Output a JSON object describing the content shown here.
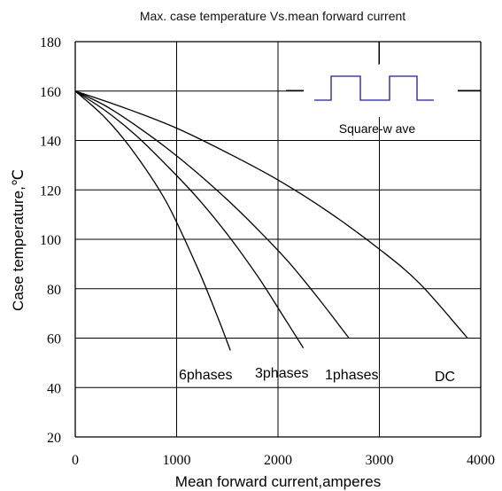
{
  "chart_data": {
    "type": "line",
    "title": "Max. case temperature Vs.mean forward current",
    "xlabel": "Mean forward  current,amperes",
    "ylabel": "Case temperature,℃",
    "xlim": [
      0,
      4000
    ],
    "ylim": [
      20,
      180
    ],
    "xticks": [
      "0",
      "1000",
      "2000",
      "3000",
      "4000"
    ],
    "yticks": [
      "20",
      "40",
      "60",
      "80",
      "100",
      "120",
      "140",
      "160",
      "180"
    ],
    "grid": true,
    "series": [
      {
        "name": "6phases",
        "color": "#000000",
        "x": [
          0,
          300,
          600,
          900,
          1200,
          1400,
          1530
        ],
        "y": [
          160,
          149,
          134,
          115,
          89,
          69,
          55
        ]
      },
      {
        "name": "3phases",
        "color": "#000000",
        "x": [
          0,
          300,
          600,
          900,
          1200,
          1500,
          1800,
          2050,
          2250
        ],
        "y": [
          160,
          152,
          142,
          130,
          117,
          102,
          85,
          69,
          56
        ]
      },
      {
        "name": "1phases",
        "color": "#000000",
        "x": [
          0,
          300,
          600,
          900,
          1200,
          1500,
          1800,
          2100,
          2400,
          2700
        ],
        "y": [
          160,
          154,
          146,
          137,
          127,
          116,
          104,
          91,
          76,
          60
        ]
      },
      {
        "name": "DC",
        "color": "#000000",
        "x": [
          0,
          500,
          1000,
          1500,
          2000,
          2500,
          3000,
          3400,
          3870
        ],
        "y": [
          160,
          153,
          145,
          135,
          124,
          111,
          96,
          82,
          60
        ]
      }
    ],
    "annotations": {
      "waveform_label": "Square-w ave",
      "waveform_color": "#1a1aa0"
    }
  }
}
